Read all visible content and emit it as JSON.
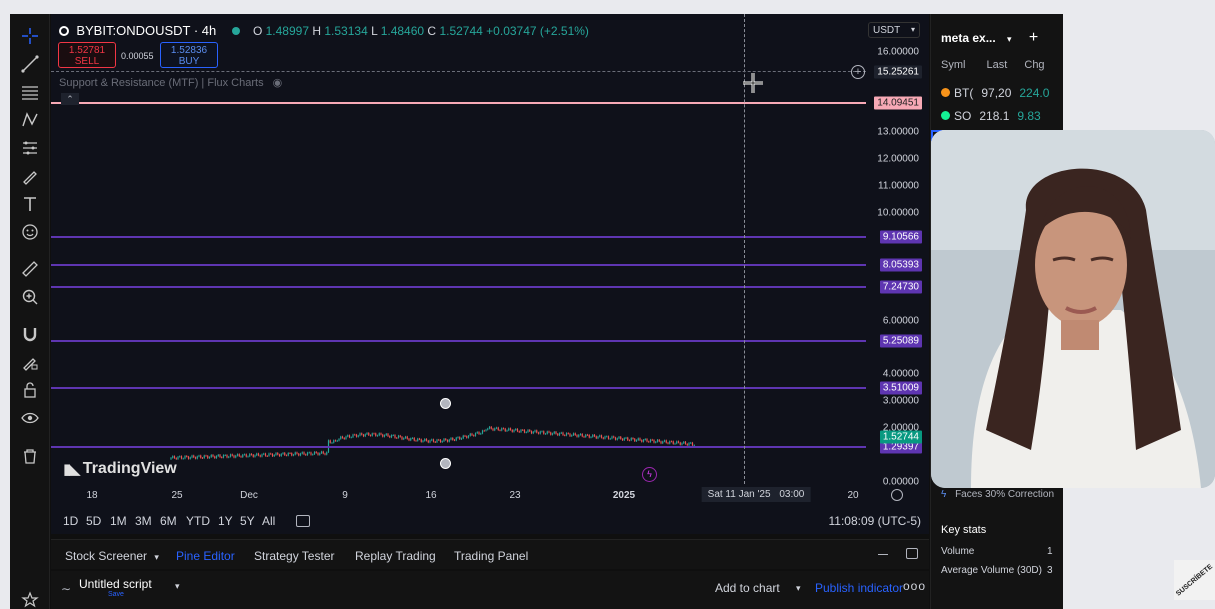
{
  "header": {
    "symbol": "BYBIT:ONDOUSDT · 4h",
    "open_key": "O",
    "open": "1.48997",
    "high_key": "H",
    "high": "1.53134",
    "low_key": "L",
    "low": "1.48460",
    "close_key": "C",
    "close": "1.52744",
    "change": "+0.03747 (+2.51%)"
  },
  "trade": {
    "sell_price": "1.52781",
    "sell_label": "SELL",
    "spread": "0.00055",
    "buy_price": "1.52836",
    "buy_label": "BUY"
  },
  "indicator": {
    "name": "Support & Resistance (MTF) | Flux Charts"
  },
  "currency": "USDT",
  "price_axis": {
    "ticks": [
      "16.00000",
      "13.00000",
      "12.00000",
      "11.00000",
      "10.00000",
      "6.00000",
      "4.00000",
      "3.00000",
      "2.00000",
      "0.00000"
    ],
    "crosshair_price": "15.25261",
    "levels": [
      {
        "value": "14.09451",
        "color": "#f7a9b6"
      },
      {
        "value": "9.10566",
        "color": "#5e35b1"
      },
      {
        "value": "8.05393",
        "color": "#5e35b1"
      },
      {
        "value": "7.24730",
        "color": "#5e35b1"
      },
      {
        "value": "5.25089",
        "color": "#5e35b1"
      },
      {
        "value": "3.51009",
        "color": "#5e35b1"
      },
      {
        "value": "1.29397",
        "color": "#5e35b1"
      }
    ],
    "last_price": "1.52744"
  },
  "time_axis": {
    "ticks": [
      "18",
      "25",
      "Dec",
      "9",
      "16",
      "23",
      "2025",
      "20"
    ],
    "crosshair_date": "Sat 11 Jan '25",
    "crosshair_time": "03:00"
  },
  "timeframes": [
    "1D",
    "5D",
    "1M",
    "3M",
    "6M",
    "YTD",
    "1Y",
    "5Y",
    "All"
  ],
  "clock": "11:08:09 (UTC-5)",
  "bottom_tabs": {
    "screener": "Stock Screener",
    "pine": "Pine Editor",
    "strategy": "Strategy Tester",
    "replay": "Replay Trading",
    "panel": "Trading Panel"
  },
  "script": {
    "name": "Untitled script",
    "saved": "Save",
    "add": "Add to chart",
    "publish": "Publish indicator"
  },
  "watchlist": {
    "title": "meta ex...",
    "col_symbol": "Syml",
    "col_last": "Last",
    "col_chg": "Chg",
    "rows": [
      {
        "sym": "BT(",
        "last": "97,20",
        "chg": "224.0"
      },
      {
        "sym": "SO",
        "last": "218.1",
        "chg": "9.83"
      }
    ],
    "news": "Faces 30% Correction",
    "key_stats": "Key stats",
    "volume": "Volume",
    "volume_value": "1",
    "avg_volume": "Average Volume (30D)",
    "avg_volume_value": "3"
  },
  "branding": {
    "logo": "TradingView",
    "subscribe": "SUSCRÍBETE"
  },
  "colors": {
    "bg": "#0f111a",
    "support": "#5e35b1",
    "resistance": "#f7a9b6",
    "up": "#26a69a",
    "down": "#ef5350"
  }
}
